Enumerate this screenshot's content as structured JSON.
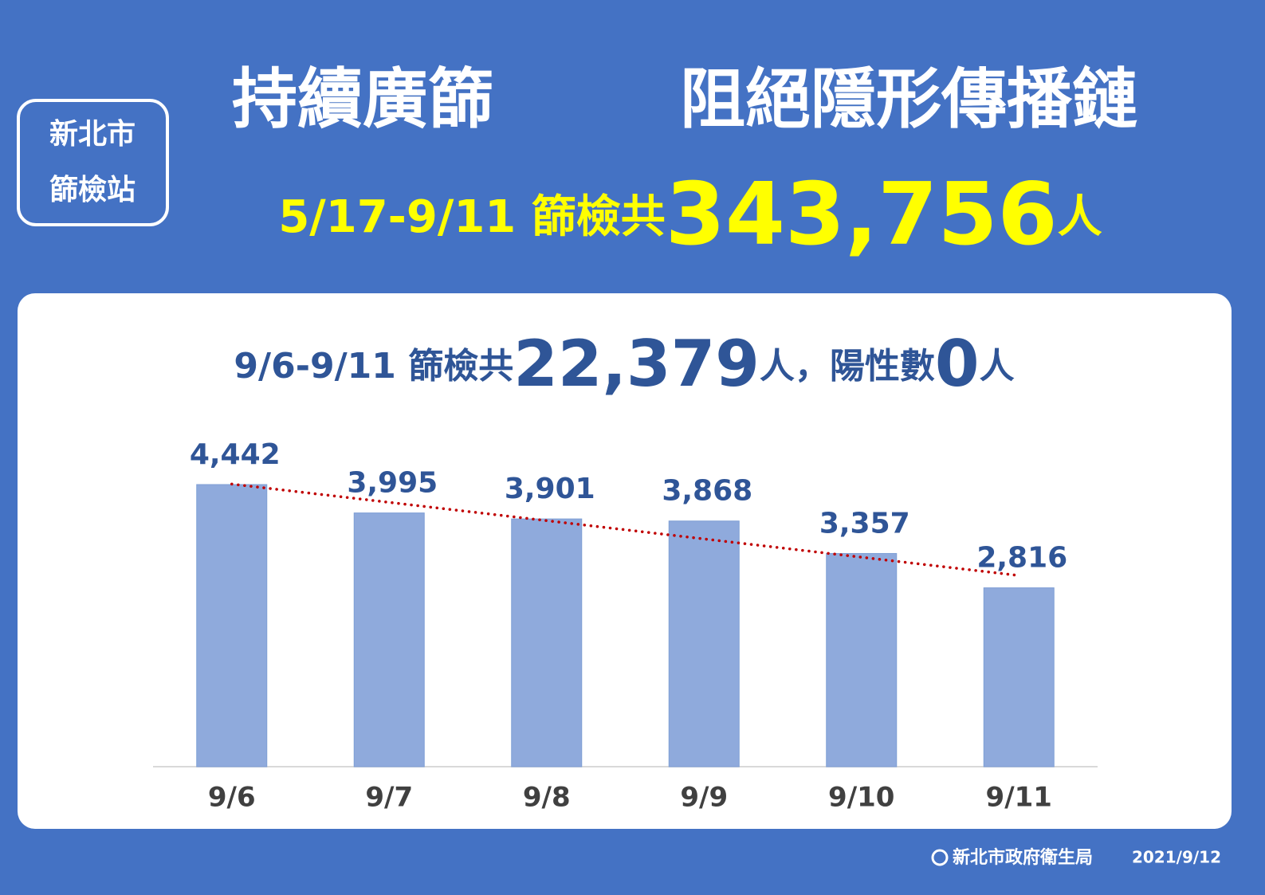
{
  "badge": {
    "line1": "新北市",
    "line2": "篩檢站"
  },
  "header": {
    "title_part1": "持續廣篩",
    "title_part2": "阻絕隱形傳播鏈",
    "period": "5/17-9/11 篩檢共",
    "total": "343,756",
    "unit": "人"
  },
  "chart_data": {
    "type": "bar",
    "subtitle": {
      "period": "9/6-9/11 篩檢共",
      "total": "22,379",
      "middle": "人，陽性數",
      "positive": "0",
      "unit": "人"
    },
    "categories": [
      "9/6",
      "9/7",
      "9/8",
      "9/9",
      "9/10",
      "9/11"
    ],
    "values": [
      4442,
      3995,
      3901,
      3868,
      3357,
      2816
    ],
    "value_labels": [
      "4,442",
      "3,995",
      "3,901",
      "3,868",
      "3,357",
      "2,816"
    ],
    "color": "#8faadc",
    "trendline": true,
    "trendline_color": "#c00000"
  },
  "footer": {
    "agency": "新北市政府衛生局",
    "date": "2021/9/12"
  }
}
